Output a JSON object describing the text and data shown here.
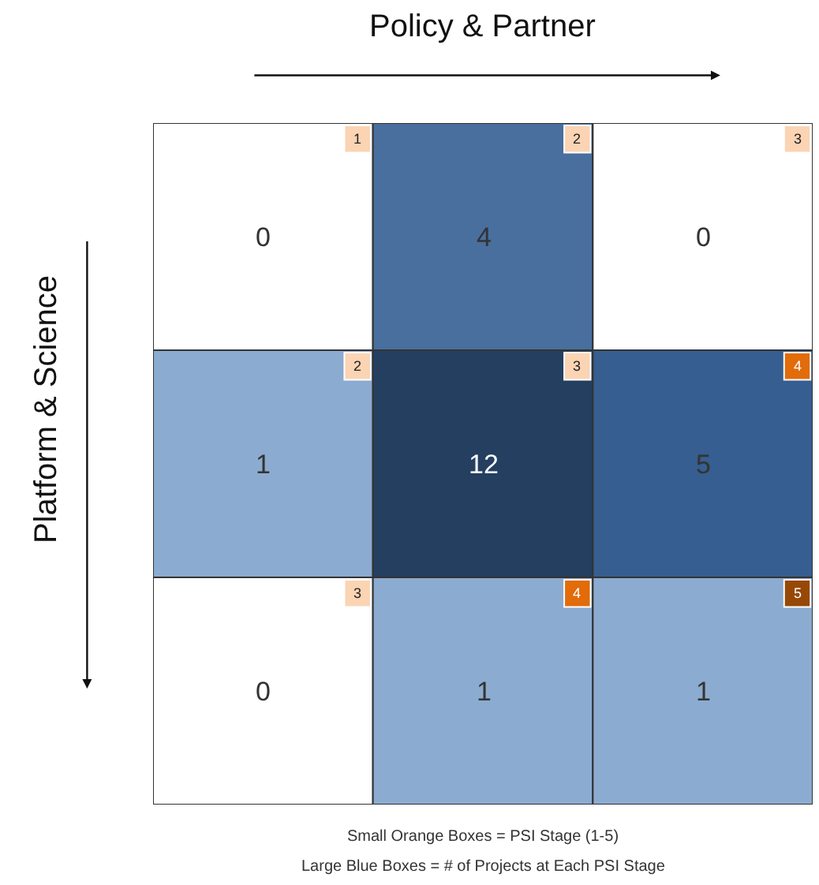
{
  "chart_data": {
    "type": "heatmap",
    "xlabel": "Policy & Partner",
    "ylabel": "Platform & Science",
    "categories": [
      null,
      null,
      null
    ],
    "y_categories": [
      null,
      null,
      null
    ],
    "cells": [
      [
        0,
        4,
        0
      ],
      [
        1,
        12,
        5
      ],
      [
        0,
        1,
        1
      ]
    ],
    "data_labels": true,
    "annotations": [
      "1",
      "2",
      "3",
      "2",
      "3",
      "4",
      "3",
      "4",
      "5",
      "Small Orange Boxes = PSI Stage (1-5)",
      "Large Blue Boxes = # of Projects at Each PSI Stage"
    ]
  }
}
